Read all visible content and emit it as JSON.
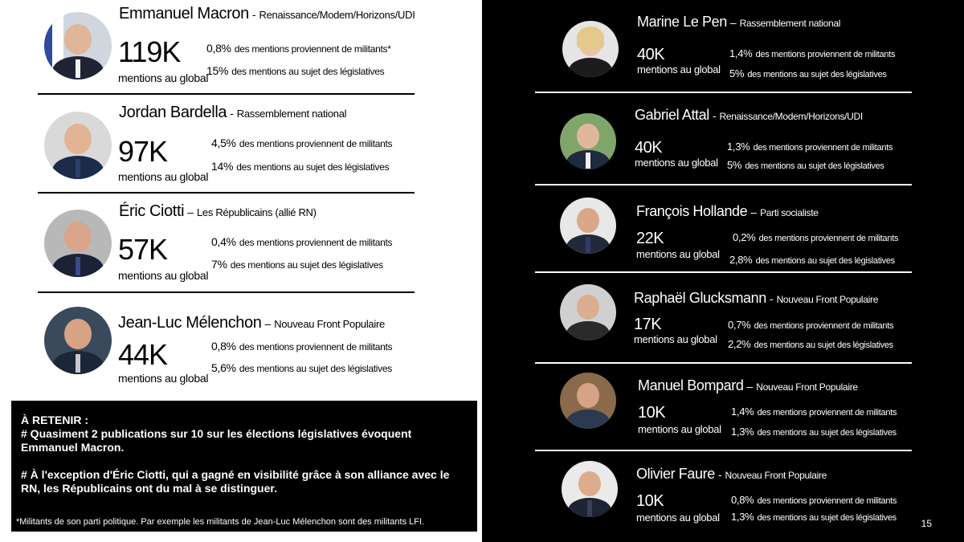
{
  "left": {
    "candidates": [
      {
        "name": "Emmanuel Macron",
        "sep": "-",
        "party": "Renaissance/Modem/Horizons/UDI",
        "count": "119K",
        "count_label": "mentions au global",
        "stat1_pct": "0,8%",
        "stat1_txt": "des mentions proviennent de militants*",
        "stat2_pct": "15%",
        "stat2_txt": "des mentions au sujet des législatives"
      },
      {
        "name": "Jordan Bardella",
        "sep": "-",
        "party": "Rassemblement national",
        "count": "97K",
        "count_label": "mentions au global",
        "stat1_pct": "4,5%",
        "stat1_txt": "des mentions proviennent de militants",
        "stat2_pct": "14%",
        "stat2_txt": "des mentions au sujet des législatives"
      },
      {
        "name": "Éric Ciotti",
        "sep": "–",
        "party": "Les Républicains (allié RN)",
        "count": "57K",
        "count_label": "mentions au global",
        "stat1_pct": "0,4%",
        "stat1_txt": "des mentions proviennent de militants",
        "stat2_pct": "7%",
        "stat2_txt": "des mentions au sujet des législatives"
      },
      {
        "name": "Jean-Luc Mélenchon",
        "sep": "–",
        "party": "Nouveau Front Populaire",
        "count": "44K",
        "count_label": "mentions au global",
        "stat1_pct": "0,8%",
        "stat1_txt": "des mentions proviennent de militants",
        "stat2_pct": "5,6%",
        "stat2_txt": "des mentions au sujet des législatives"
      }
    ],
    "retain": {
      "title": "À RETENIR :",
      "p1": "# Quasiment 2 publications sur 10 sur les élections législatives évoquent Emmanuel Macron.",
      "p2": "# À l'exception d'Éric Ciotti, qui a gagné en visibilité grâce à son alliance avec le RN, les Républicains ont du mal à se distinguer.",
      "footnote": "*Militants de son parti politique. Par exemple les militants de Jean-Luc Mélenchon sont des militants LFI."
    }
  },
  "right": {
    "candidates": [
      {
        "name": "Marine Le Pen",
        "sep": "–",
        "party": "Rassemblement national",
        "count": "40K",
        "count_label": "mentions au global",
        "stat1_pct": "1,4%",
        "stat1_txt": "des mentions proviennent de militants",
        "stat2_pct": "5%",
        "stat2_txt": "des mentions au sujet des législatives"
      },
      {
        "name": "Gabriel Attal",
        "sep": "-",
        "party": "Renaissance/Modem/Horizons/UDI",
        "count": "40K",
        "count_label": "mentions au global",
        "stat1_pct": "1,3%",
        "stat1_txt": "des mentions proviennent de militants",
        "stat2_pct": "5%",
        "stat2_txt": "des mentions au sujet des législatives"
      },
      {
        "name": "François Hollande",
        "sep": "–",
        "party": "Parti socialiste",
        "count": "22K",
        "count_label": "mentions au global",
        "stat1_pct": "0,2%",
        "stat1_txt": "des mentions proviennent de militants",
        "stat2_pct": "2,8%",
        "stat2_txt": "des mentions au sujet des législatives"
      },
      {
        "name": "Raphaël Glucksmann",
        "sep": "-",
        "party": "Nouveau Front Populaire",
        "count": "17K",
        "count_label": "mentions au global",
        "stat1_pct": "0,7%",
        "stat1_txt": "des mentions proviennent de militants",
        "stat2_pct": "2,2%",
        "stat2_txt": "des mentions au sujet des législatives"
      },
      {
        "name": "Manuel Bompard",
        "sep": "–",
        "party": "Nouveau Front Populaire",
        "count": "10K",
        "count_label": "mentions au global",
        "stat1_pct": "1,4%",
        "stat1_txt": "des mentions proviennent de militants",
        "stat2_pct": "1,3%",
        "stat2_txt": "des mentions au sujet des législatives"
      },
      {
        "name": "Olivier Faure",
        "sep": "-",
        "party": "Nouveau Front Populaire",
        "count": "10K",
        "count_label": "mentions au global",
        "stat1_pct": "0,8%",
        "stat1_txt": "des mentions proviennent de militants",
        "stat2_pct": "1,3%",
        "stat2_txt": "des mentions au sujet des législatives"
      }
    ]
  },
  "page_number": "15"
}
